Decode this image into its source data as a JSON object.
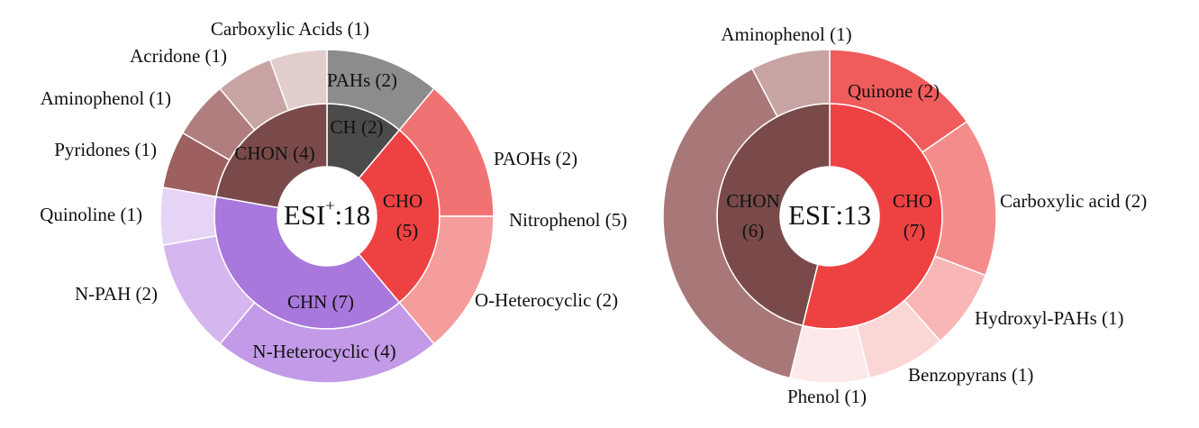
{
  "chart_data": [
    {
      "type": "sunburst",
      "center": [
        "ESI",
        "+",
        ":18"
      ],
      "inner": {
        "labels": [
          "CH (2)",
          "CHO (5)",
          "CHN (7)",
          "CHON (4)"
        ],
        "values": [
          2,
          5,
          7,
          4
        ],
        "colors": [
          "#4b4b4b",
          "#ee4242",
          "#a878dc",
          "#7a4a4a"
        ]
      },
      "outer": {
        "labels": [
          "PAHs (2)",
          "PAOHs (2)",
          "O-Heterocyclic (2)",
          "N-Heterocyclic (4)",
          "N-PAH (2)",
          "Quinoline (1)",
          "Pyridones (1)",
          "Aminophenol (1)",
          "Acridone (1)",
          "Carboxylic Acids (1)"
        ],
        "values": [
          2,
          2,
          2,
          4,
          2,
          1,
          1,
          1,
          1,
          1
        ],
        "parents": [
          0,
          1,
          1,
          2,
          2,
          2,
          3,
          3,
          3,
          3
        ],
        "colors": [
          "#8c8c8c",
          "#f07272",
          "#f59c9c",
          "#c29ae8",
          "#d6b6ef",
          "#e6d4f6",
          "#9e5f5f",
          "#b07e7e",
          "#c8a4a4",
          "#e2cdcd"
        ]
      },
      "annotations": [
        "Nitrophenol (5)"
      ]
    },
    {
      "type": "sunburst",
      "center": [
        "ESI",
        "-",
        ":13"
      ],
      "inner": {
        "labels": [
          "CHO (7)",
          "CHON (6)"
        ],
        "values": [
          7,
          6
        ],
        "colors": [
          "#ee4242",
          "#7a4a4a"
        ]
      },
      "outer": {
        "labels": [
          "Quinone (2)",
          "Carboxylic acid (2)",
          "Hydroxyl-PAHs (1)",
          "Benzopyrans (1)",
          "Phenol (1)",
          null,
          "Aminophenol (1)"
        ],
        "values": [
          2,
          2,
          1,
          1,
          1,
          5,
          1
        ],
        "parents": [
          0,
          0,
          0,
          0,
          0,
          1,
          1
        ],
        "colors": [
          "#f05c5c",
          "#f58c8c",
          "#f8b6b6",
          "#fbd6d6",
          "#fde9e9",
          "#a87878",
          "#c8a4a4"
        ]
      },
      "annotations": []
    }
  ]
}
